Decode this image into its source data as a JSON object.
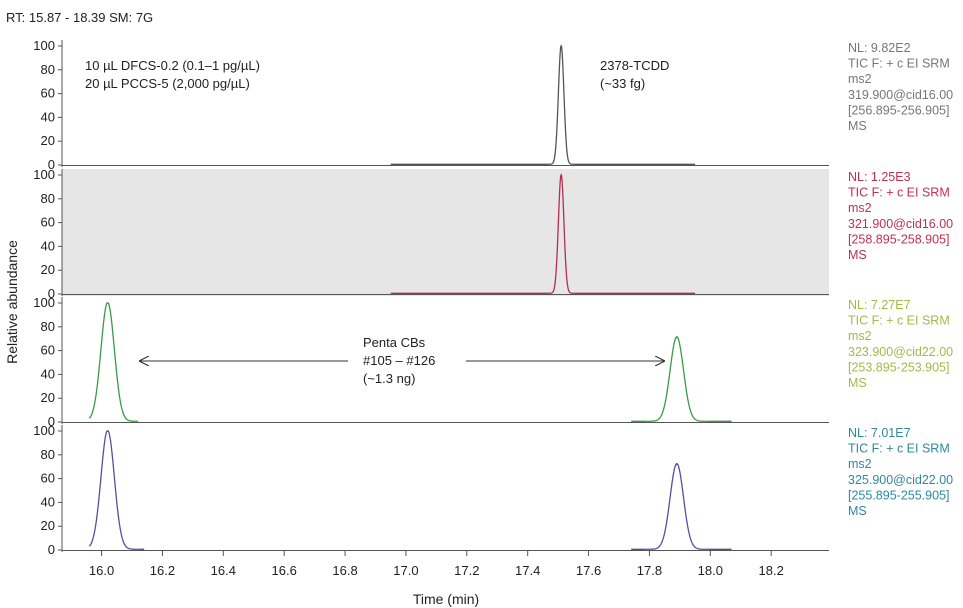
{
  "chart_data": {
    "type": "line",
    "header": "RT: 15.87 - 18.39 SM: 7G",
    "xlabel": "Time (min)",
    "ylabel": "Relative abundance",
    "xlim": [
      15.87,
      18.39
    ],
    "x_ticks": [
      "16.0",
      "16.2",
      "16.4",
      "16.6",
      "16.8",
      "17.0",
      "17.2",
      "17.4",
      "17.6",
      "17.8",
      "18.0",
      "18.2"
    ],
    "y_ticks": [
      "0",
      "20",
      "40",
      "60",
      "80",
      "100"
    ],
    "ylim": [
      0,
      100
    ],
    "panels": [
      {
        "line_color": "#555555",
        "label_color": "#777777",
        "shaded": false,
        "baseline_segments": [
          [
            16.95,
            17.95
          ]
        ],
        "peaks": [
          {
            "x": 17.51,
            "height": 100,
            "width": 0.009
          }
        ],
        "info": [
          "NL: 9.82E2",
          "TIC F: + c EI SRM",
          "ms2",
          "319.900@cid16.00",
          "[256.895-256.905]",
          "MS"
        ]
      },
      {
        "line_color": "#b03050",
        "label_color": "#c0304f",
        "shaded": true,
        "baseline_segments": [
          [
            16.95,
            17.95
          ]
        ],
        "peaks": [
          {
            "x": 17.51,
            "height": 100,
            "width": 0.009
          }
        ],
        "info": [
          "NL: 1.25E3",
          "TIC F: + c EI SRM",
          "ms2",
          "321.900@cid16.00",
          "[258.895-258.905]",
          "MS"
        ]
      },
      {
        "line_color": "#3b9a4a",
        "label_color": "#a6b84a",
        "shaded": false,
        "baseline_segments": [
          [
            15.96,
            16.12
          ],
          [
            17.74,
            18.07
          ]
        ],
        "peaks": [
          {
            "x": 16.02,
            "height": 100,
            "width": 0.022
          },
          {
            "x": 17.89,
            "height": 71,
            "width": 0.022
          }
        ],
        "info": [
          "NL: 7.27E7",
          "TIC F: + c EI SRM",
          "ms2",
          "323.900@cid22.00",
          "[253.895-253.905]",
          "MS"
        ]
      },
      {
        "line_color": "#5c4c9e",
        "label_color": "#2f88a0",
        "shaded": false,
        "baseline_segments": [
          [
            15.96,
            16.14
          ],
          [
            17.74,
            18.07
          ]
        ],
        "peaks": [
          {
            "x": 16.02,
            "height": 100,
            "width": 0.022
          },
          {
            "x": 17.89,
            "height": 72,
            "width": 0.022
          }
        ],
        "info": [
          "NL: 7.01E7",
          "TIC F: + c EI SRM",
          "ms2",
          "325.900@cid22.00",
          "[255.895-255.905]",
          "MS"
        ]
      }
    ],
    "annotations": {
      "sample_lines": [
        "10 µL DFCS-0.2 (0.1–1 pg/µL)",
        "20 µL PCCS-5 (2,000 pg/µL)"
      ],
      "tcdd_lines": [
        "2378-TCDD",
        "(~33 fg)"
      ],
      "penta_lines": [
        "Penta CBs",
        "#105 – #126",
        "(~1.3 ng)"
      ]
    }
  }
}
